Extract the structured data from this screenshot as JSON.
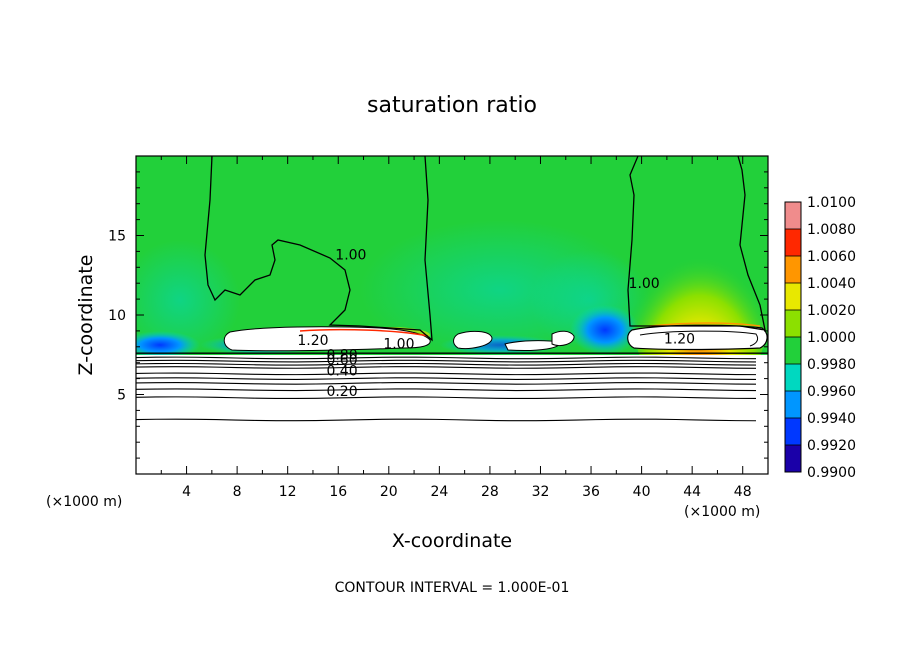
{
  "chart_data": {
    "type": "heatmap",
    "title": "saturation ratio",
    "xlabel": "X-coordinate",
    "ylabel": "Z-coordinate",
    "x_unit_left": "(×1000 m)",
    "x_unit_right": "(×1000 m)",
    "xlim": [
      0,
      50
    ],
    "ylim": [
      0,
      20
    ],
    "xticks": [
      4,
      8,
      12,
      16,
      20,
      24,
      28,
      32,
      36,
      40,
      44,
      48
    ],
    "xtick_labels": [
      "4",
      "8",
      "12",
      "16",
      "20",
      "24",
      "28",
      "32",
      "36",
      "40",
      "44",
      "48"
    ],
    "yticks": [
      5,
      10,
      15
    ],
    "ytick_labels": [
      "5",
      "10",
      "15"
    ],
    "colorbar": {
      "levels": [
        0.99,
        0.992,
        0.994,
        0.996,
        0.998,
        1.0,
        1.002,
        1.004,
        1.006,
        1.008,
        1.01
      ],
      "labels": [
        "0.9900",
        "0.9920",
        "0.9940",
        "0.9960",
        "0.9980",
        "1.0000",
        "1.0020",
        "1.0040",
        "1.0060",
        "1.0080",
        "1.0100"
      ],
      "colors": [
        "#6a1b9a",
        "#1a00a8",
        "#0038ff",
        "#0096ff",
        "#00d8c0",
        "#22d03a",
        "#8ce000",
        "#e8e800",
        "#ff9600",
        "#ff2800",
        "#f08c8c"
      ]
    },
    "contour_labels": [
      {
        "text": "1.00",
        "x": 17.0,
        "y": 13.5
      },
      {
        "text": "1.00",
        "x": 40.2,
        "y": 11.7
      },
      {
        "text": "1.20",
        "x": 14.0,
        "y": 8.1
      },
      {
        "text": "1.00",
        "x": 20.8,
        "y": 7.9
      },
      {
        "text": "1.20",
        "x": 43.0,
        "y": 8.2
      },
      {
        "text": "0.80",
        "x": 16.3,
        "y": 7.2
      },
      {
        "text": "0.60",
        "x": 16.3,
        "y": 6.9
      },
      {
        "text": "0.40",
        "x": 16.3,
        "y": 6.2
      },
      {
        "text": "0.20",
        "x": 16.3,
        "y": 4.9
      }
    ],
    "contour_lines_y": [
      3.4,
      4.8,
      5.3,
      5.7,
      6.0,
      6.3,
      6.7,
      6.9,
      7.1,
      7.3
    ],
    "cloud_layer_top": 7.6,
    "grid": false,
    "legend": "right"
  },
  "footer": {
    "contour_interval": "CONTOUR INTERVAL = 1.000E-01"
  }
}
